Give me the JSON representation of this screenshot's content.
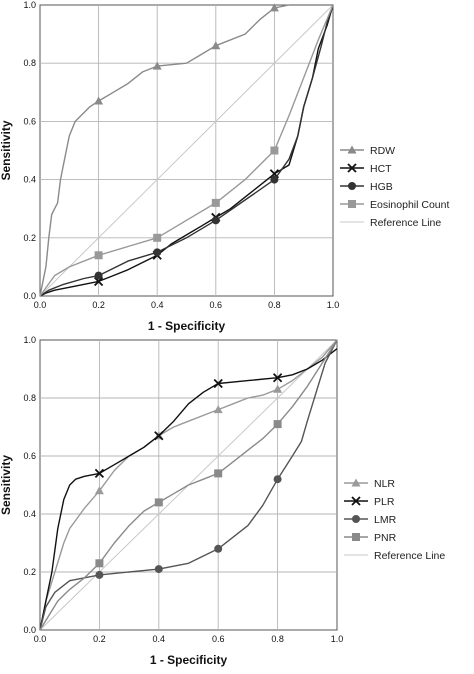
{
  "chart_data": [
    {
      "type": "line",
      "xlabel": "1 - Specificity",
      "ylabel": "Sensitivity",
      "xlim": [
        0,
        1
      ],
      "ylim": [
        0,
        1
      ],
      "ticks": [
        "0.0",
        "0.2",
        "0.4",
        "0.6",
        "0.8",
        "1.0"
      ],
      "grid": true,
      "legend_position": "right",
      "series": [
        {
          "name": "RDW",
          "color": "#8a8a8a",
          "marker": "triangle",
          "x": [
            0,
            0.02,
            0.03,
            0.04,
            0.05,
            0.06,
            0.07,
            0.08,
            0.1,
            0.12,
            0.14,
            0.15,
            0.17,
            0.2,
            0.25,
            0.3,
            0.35,
            0.4,
            0.5,
            0.55,
            0.6,
            0.7,
            0.75,
            0.8,
            0.85,
            0.9,
            0.95,
            1.0
          ],
          "y": [
            0,
            0.1,
            0.2,
            0.28,
            0.3,
            0.32,
            0.4,
            0.45,
            0.55,
            0.6,
            0.62,
            0.63,
            0.65,
            0.67,
            0.7,
            0.73,
            0.77,
            0.79,
            0.8,
            0.83,
            0.86,
            0.9,
            0.95,
            0.99,
            1.0,
            1.0,
            1.0,
            1.0
          ],
          "marker_x": [
            0.2,
            0.4,
            0.6,
            0.8
          ],
          "marker_y": [
            0.67,
            0.79,
            0.86,
            0.99
          ]
        },
        {
          "name": "HCT",
          "color": "#111111",
          "marker": "x",
          "x": [
            0,
            0.02,
            0.05,
            0.1,
            0.2,
            0.25,
            0.3,
            0.4,
            0.45,
            0.5,
            0.55,
            0.6,
            0.65,
            0.7,
            0.75,
            0.8,
            0.85,
            0.88,
            0.9,
            0.93,
            0.95,
            0.98,
            1.0
          ],
          "y": [
            0,
            0.01,
            0.02,
            0.03,
            0.05,
            0.07,
            0.09,
            0.14,
            0.18,
            0.21,
            0.24,
            0.27,
            0.3,
            0.34,
            0.38,
            0.42,
            0.45,
            0.55,
            0.65,
            0.75,
            0.85,
            0.93,
            1.0
          ],
          "marker_x": [
            0.2,
            0.4,
            0.6,
            0.8
          ],
          "marker_y": [
            0.05,
            0.14,
            0.27,
            0.42
          ]
        },
        {
          "name": "HGB",
          "color": "#333333",
          "marker": "circle",
          "x": [
            0,
            0.03,
            0.08,
            0.15,
            0.2,
            0.3,
            0.4,
            0.5,
            0.6,
            0.7,
            0.8,
            0.85,
            0.88,
            0.9,
            0.93,
            0.96,
            0.98,
            1.0
          ],
          "y": [
            0,
            0.02,
            0.04,
            0.06,
            0.07,
            0.12,
            0.15,
            0.2,
            0.26,
            0.33,
            0.4,
            0.47,
            0.55,
            0.65,
            0.75,
            0.86,
            0.94,
            1.0
          ],
          "marker_x": [
            0.2,
            0.4,
            0.6,
            0.8
          ],
          "marker_y": [
            0.07,
            0.15,
            0.26,
            0.4
          ]
        },
        {
          "name": "Eosinophil Count",
          "color": "#999999",
          "marker": "square",
          "x": [
            0,
            0.05,
            0.1,
            0.2,
            0.3,
            0.4,
            0.5,
            0.6,
            0.7,
            0.8,
            0.85,
            0.9,
            0.95,
            1.0
          ],
          "y": [
            0,
            0.07,
            0.1,
            0.14,
            0.17,
            0.2,
            0.26,
            0.32,
            0.4,
            0.5,
            0.62,
            0.75,
            0.88,
            1.0
          ],
          "marker_x": [
            0.2,
            0.4,
            0.6,
            0.8
          ],
          "marker_y": [
            0.14,
            0.2,
            0.32,
            0.5
          ]
        },
        {
          "name": "Reference Line",
          "color": "#c8c8c8",
          "marker": "none",
          "x": [
            0,
            1
          ],
          "y": [
            0,
            1
          ],
          "marker_x": [],
          "marker_y": []
        }
      ]
    },
    {
      "type": "line",
      "xlabel": "1 - Specificity",
      "ylabel": "Sensitivity",
      "xlim": [
        0,
        1
      ],
      "ylim": [
        0,
        1
      ],
      "ticks": [
        "0.0",
        "0.2",
        "0.4",
        "0.6",
        "0.8",
        "1.0"
      ],
      "grid": true,
      "legend_position": "right",
      "series": [
        {
          "name": "NLR",
          "color": "#9a9a9a",
          "marker": "triangle",
          "x": [
            0,
            0.02,
            0.05,
            0.08,
            0.1,
            0.15,
            0.2,
            0.25,
            0.3,
            0.35,
            0.4,
            0.45,
            0.5,
            0.55,
            0.6,
            0.65,
            0.7,
            0.75,
            0.8,
            0.85,
            0.9,
            0.95,
            1.0
          ],
          "y": [
            0,
            0.1,
            0.2,
            0.3,
            0.35,
            0.42,
            0.48,
            0.55,
            0.6,
            0.63,
            0.67,
            0.7,
            0.72,
            0.74,
            0.76,
            0.78,
            0.8,
            0.81,
            0.83,
            0.86,
            0.9,
            0.94,
            1.0
          ],
          "marker_x": [
            0.2,
            0.4,
            0.6,
            0.8
          ],
          "marker_y": [
            0.48,
            0.67,
            0.76,
            0.83
          ]
        },
        {
          "name": "PLR",
          "color": "#111111",
          "marker": "x",
          "x": [
            0,
            0.02,
            0.04,
            0.06,
            0.08,
            0.1,
            0.12,
            0.15,
            0.2,
            0.25,
            0.3,
            0.35,
            0.4,
            0.45,
            0.5,
            0.55,
            0.6,
            0.7,
            0.8,
            0.85,
            0.9,
            0.95,
            1.0
          ],
          "y": [
            0,
            0.1,
            0.2,
            0.35,
            0.45,
            0.5,
            0.52,
            0.53,
            0.54,
            0.57,
            0.6,
            0.63,
            0.67,
            0.72,
            0.78,
            0.82,
            0.85,
            0.86,
            0.87,
            0.88,
            0.9,
            0.93,
            0.97
          ],
          "marker_x": [
            0.2,
            0.4,
            0.6,
            0.8
          ],
          "marker_y": [
            0.54,
            0.67,
            0.85,
            0.87
          ]
        },
        {
          "name": "LMR",
          "color": "#555555",
          "marker": "circle",
          "x": [
            0,
            0.02,
            0.05,
            0.1,
            0.2,
            0.3,
            0.4,
            0.5,
            0.6,
            0.7,
            0.75,
            0.8,
            0.85,
            0.88,
            0.9,
            0.93,
            0.96,
            1.0
          ],
          "y": [
            0,
            0.08,
            0.13,
            0.17,
            0.19,
            0.2,
            0.21,
            0.23,
            0.28,
            0.36,
            0.43,
            0.52,
            0.6,
            0.65,
            0.72,
            0.82,
            0.92,
            1.0
          ],
          "marker_x": [
            0.2,
            0.4,
            0.6,
            0.8
          ],
          "marker_y": [
            0.19,
            0.21,
            0.28,
            0.52
          ]
        },
        {
          "name": "PNR",
          "color": "#8a8a8a",
          "marker": "square",
          "x": [
            0,
            0.03,
            0.06,
            0.1,
            0.15,
            0.2,
            0.25,
            0.3,
            0.35,
            0.4,
            0.45,
            0.5,
            0.55,
            0.6,
            0.65,
            0.7,
            0.75,
            0.8,
            0.85,
            0.9,
            0.95,
            1.0
          ],
          "y": [
            0,
            0.05,
            0.1,
            0.14,
            0.18,
            0.23,
            0.3,
            0.36,
            0.41,
            0.44,
            0.47,
            0.5,
            0.52,
            0.54,
            0.58,
            0.62,
            0.66,
            0.71,
            0.77,
            0.84,
            0.92,
            1.0
          ],
          "marker_x": [
            0.2,
            0.4,
            0.6,
            0.8
          ],
          "marker_y": [
            0.23,
            0.44,
            0.54,
            0.71
          ]
        },
        {
          "name": "Reference Line",
          "color": "#c8c8c8",
          "marker": "none",
          "x": [
            0,
            1
          ],
          "y": [
            0,
            1
          ],
          "marker_x": [],
          "marker_y": []
        }
      ]
    }
  ]
}
